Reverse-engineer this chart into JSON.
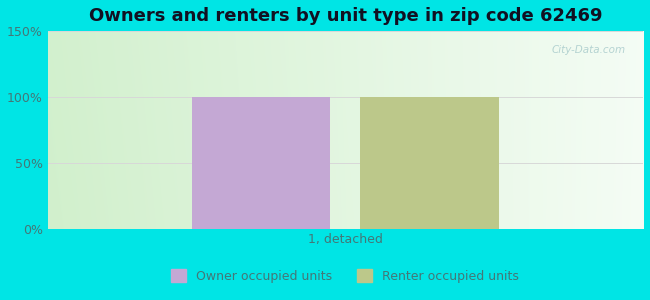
{
  "title": "Owners and renters by unit type in zip code 62469",
  "categories": [
    "1, detached"
  ],
  "owner_values": [
    100
  ],
  "renter_values": [
    100
  ],
  "owner_color": "#c4a8d4",
  "renter_color": "#bcc88a",
  "ylim": [
    0,
    150
  ],
  "yticks": [
    0,
    50,
    100,
    150
  ],
  "ytick_labels": [
    "0%",
    "50%",
    "100%",
    "150%"
  ],
  "title_fontsize": 13,
  "legend_owner": "Owner occupied units",
  "legend_renter": "Renter occupied units",
  "watermark": "City-Data.com",
  "bar_width": 0.28,
  "bar_gap": 0.06,
  "xlim": [
    -0.6,
    0.6
  ],
  "fig_facecolor": "#00e5e5",
  "ax_bg_gradient_left": "#b8e8b0",
  "ax_bg_gradient_right": "#e8f8f0",
  "grid_color": "#d8d8d8",
  "tick_color": "#447777",
  "xlabel_color": "#447777"
}
